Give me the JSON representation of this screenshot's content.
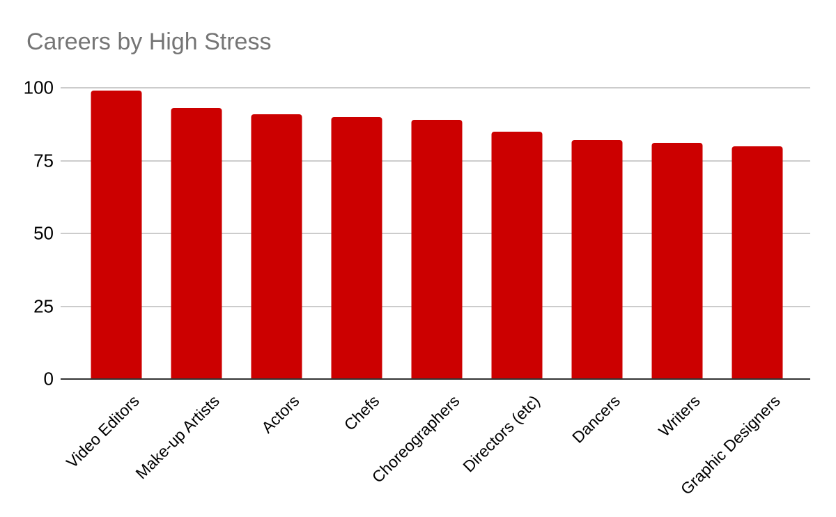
{
  "chart_data": {
    "type": "bar",
    "title": "Careers by High Stress",
    "categories": [
      "Video Editors",
      "Make-up Artists",
      "Actors",
      "Chefs",
      "Choreographers",
      "Directors (etc)",
      "Dancers",
      "Writers",
      "Graphic Designers"
    ],
    "values": [
      99,
      93,
      91,
      90,
      89,
      85,
      82,
      81,
      80
    ],
    "xlabel": "",
    "ylabel": "",
    "ylim": [
      0,
      100
    ],
    "yticks": [
      0,
      25,
      50,
      75,
      100
    ],
    "grid": true,
    "legend": false,
    "x_label_rotation_deg": -45,
    "colors": {
      "bar": "#cc0000",
      "title": "#757575",
      "axis_line": "#333333",
      "gridline": "#cccccc",
      "tick_label": "#000000",
      "background": "#ffffff"
    }
  }
}
